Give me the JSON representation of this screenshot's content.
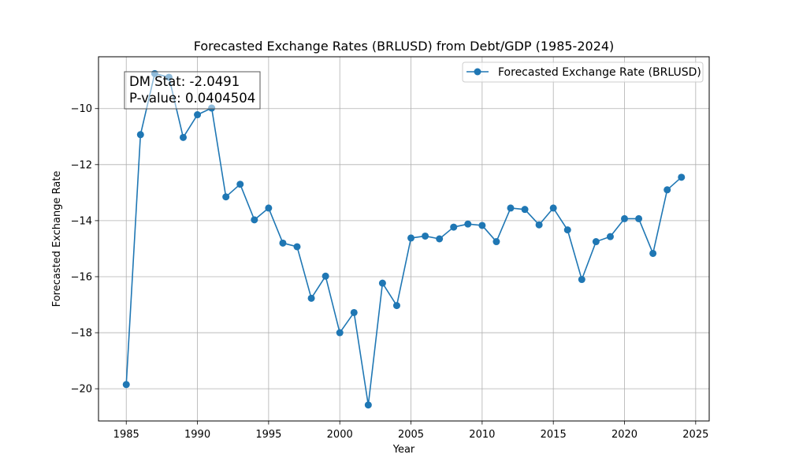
{
  "chart_data": {
    "type": "line",
    "title": "Forecasted Exchange Rates (BRLUSD) from Debt/GDP (1985-2024)",
    "xlabel": "Year",
    "ylabel": "Forecasted Exchange Rate",
    "xlim": [
      1983.05,
      2025.95
    ],
    "ylim": [
      -21.15,
      -8.15
    ],
    "xticks": [
      1985,
      1990,
      1995,
      2000,
      2005,
      2010,
      2015,
      2020,
      2025
    ],
    "yticks": [
      -20,
      -18,
      -16,
      -14,
      -12,
      -10
    ],
    "grid": true,
    "legend_position": "top-right",
    "series": [
      {
        "name": "Forecasted Exchange Rate (BRLUSD)",
        "color": "#1f77b4",
        "marker": "circle",
        "x": [
          1985,
          1986,
          1987,
          1988,
          1989,
          1990,
          1991,
          1992,
          1993,
          1994,
          1995,
          1996,
          1997,
          1998,
          1999,
          2000,
          2001,
          2002,
          2003,
          2004,
          2005,
          2006,
          2007,
          2008,
          2009,
          2010,
          2011,
          2012,
          2013,
          2014,
          2015,
          2016,
          2017,
          2018,
          2019,
          2020,
          2021,
          2022,
          2023,
          2024
        ],
        "values": [
          -19.85,
          -10.93,
          -8.75,
          -8.88,
          -11.03,
          -10.22,
          -9.98,
          -13.15,
          -12.7,
          -13.97,
          -13.55,
          -14.8,
          -14.93,
          -16.77,
          -15.98,
          -18.0,
          -17.28,
          -20.58,
          -16.23,
          -17.03,
          -14.62,
          -14.55,
          -14.65,
          -14.23,
          -14.12,
          -14.17,
          -14.75,
          -13.55,
          -13.6,
          -14.15,
          -13.55,
          -14.33,
          -16.1,
          -14.75,
          -14.57,
          -13.93,
          -13.93,
          -15.17,
          -12.9,
          -12.45
        ]
      }
    ],
    "annotation": {
      "lines": [
        "DM Stat: -2.0491",
        "P-value: 0.0404504"
      ]
    }
  }
}
